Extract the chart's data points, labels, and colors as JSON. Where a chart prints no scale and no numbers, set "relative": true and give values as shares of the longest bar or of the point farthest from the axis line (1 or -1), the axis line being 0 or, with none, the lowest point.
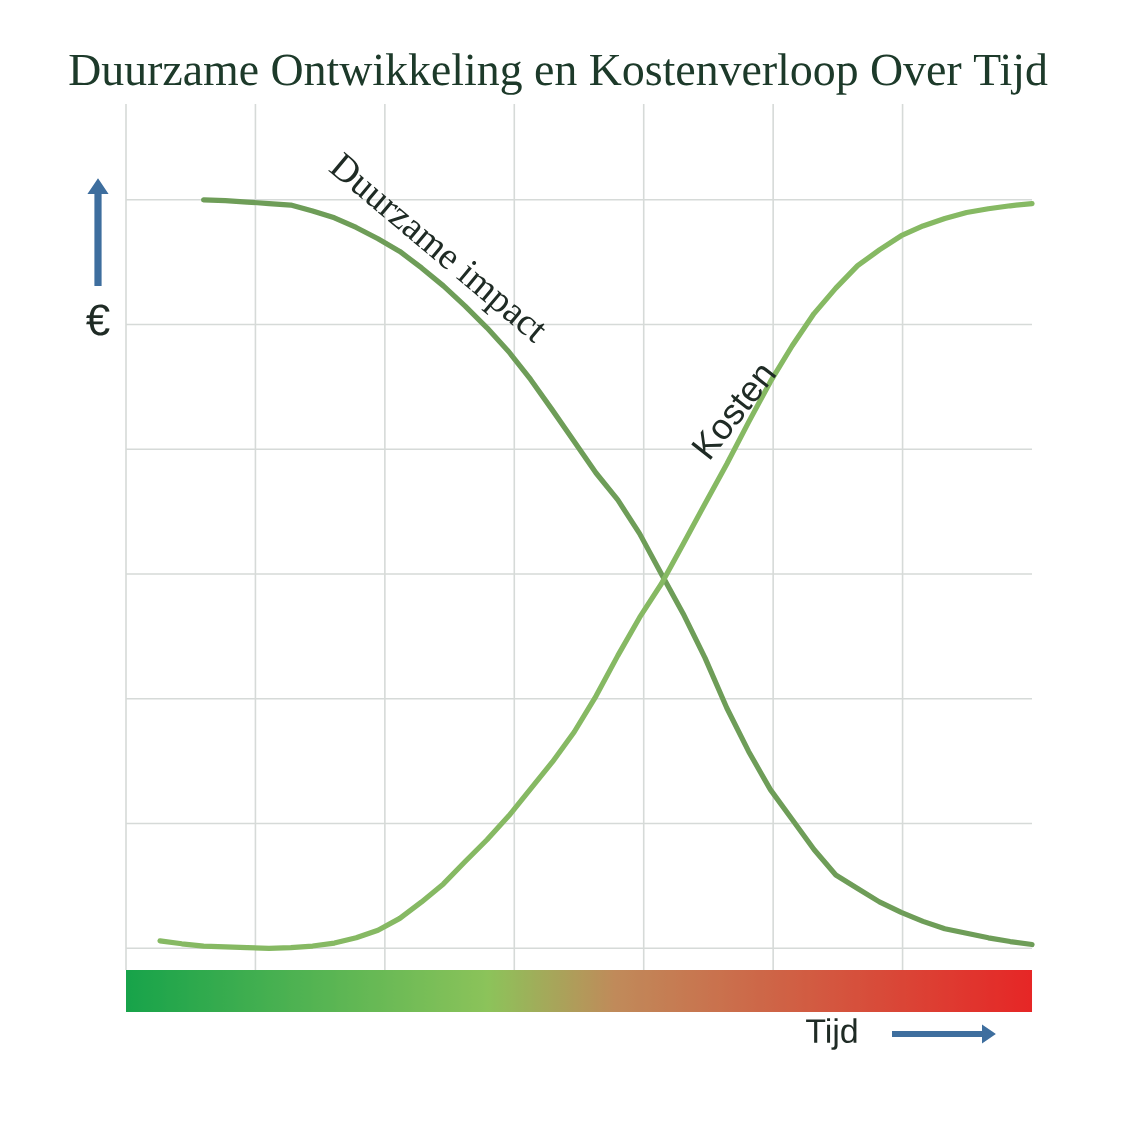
{
  "chart_data": {
    "type": "line",
    "title": "Duurzame Ontwikkeling en Kostenverloop Over Tijd",
    "xlabel": "Tijd",
    "ylabel": "€",
    "relative": true,
    "grid": true,
    "categories": [
      null,
      null,
      null,
      null,
      null,
      null,
      null,
      null,
      null,
      null,
      null,
      null,
      null,
      null,
      null,
      null,
      null,
      null,
      null,
      null,
      null,
      null,
      null,
      null,
      null,
      null,
      null,
      null,
      null,
      null,
      null,
      null,
      null,
      null,
      null,
      null,
      null,
      null,
      null,
      null,
      null
    ],
    "series": [
      {
        "name": "Duurzame impact",
        "color": "#6e9d58",
        "values": [
          null,
          null,
          1,
          0.999,
          0.997,
          0.995,
          0.993,
          0.985,
          0.976,
          0.963,
          0.948,
          0.931,
          0.909,
          0.885,
          0.858,
          0.829,
          0.797,
          0.76,
          0.719,
          0.677,
          0.635,
          0.599,
          0.554,
          0.5,
          0.447,
          0.388,
          0.321,
          0.263,
          0.212,
          0.172,
          0.132,
          0.098,
          0.08,
          0.062,
          0.048,
          0.036,
          0.026,
          0.02,
          0.014,
          0.009,
          0.005
        ]
      },
      {
        "name": "Kosten",
        "color": "#86b963",
        "values": [
          0.01,
          0.006,
          0.003,
          0.002,
          0.001,
          0,
          0.001,
          0.003,
          0.007,
          0.014,
          0.024,
          0.04,
          0.062,
          0.086,
          0.116,
          0.145,
          0.177,
          0.213,
          0.249,
          0.289,
          0.337,
          0.391,
          0.442,
          0.487,
          0.54,
          0.594,
          0.647,
          0.703,
          0.757,
          0.805,
          0.848,
          0.882,
          0.912,
          0.933,
          0.952,
          0.965,
          0.975,
          0.983,
          0.988,
          0.992,
          0.995
        ]
      }
    ]
  }
}
